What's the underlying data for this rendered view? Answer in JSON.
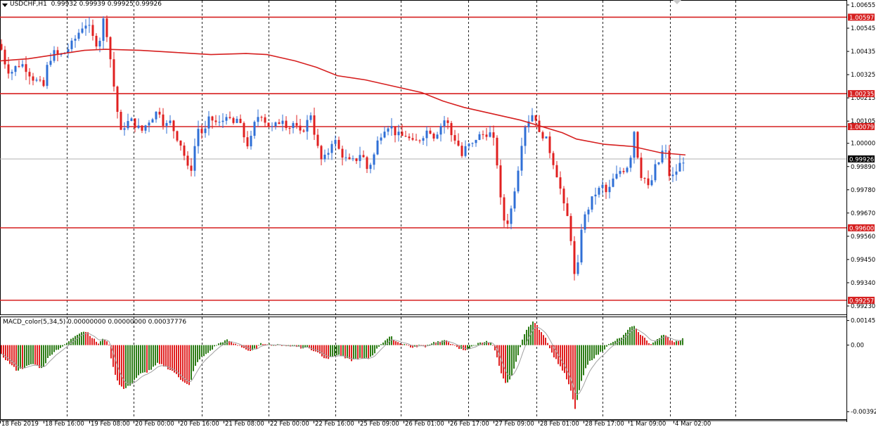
{
  "window": {
    "symbol_title": "USDCHF,H1",
    "ohlc_text": "0.99932 0.99939 0.99925 0.99926",
    "macd_title": "MACD_color(5,34,5)",
    "macd_values_text": "0.00000000 0.00000000 0.00037776"
  },
  "colors": {
    "bull": "#2f6fd6",
    "bear": "#e02020",
    "level_line": "#d62020",
    "ma_line": "#d62020",
    "hist_up": "#2e7d18",
    "hist_down": "#e02020",
    "signal_line": "#a0a0a0",
    "grid": "#000000",
    "price_badge_bg": "#000000"
  },
  "chart_data": [
    {
      "type": "candlestick",
      "symbol": "USDCHF",
      "timeframe": "H1",
      "y_ticks": [
        "1.00655",
        "1.00545",
        "1.00435",
        "1.00325",
        "1.00215",
        "1.00105",
        "1.00000",
        "0.99890",
        "0.99780",
        "0.99670",
        "0.99560",
        "0.99450",
        "0.99340",
        "0.99230"
      ],
      "ylim": [
        0.9922,
        1.00665
      ],
      "x_tick_labels": [
        "18 Feb 2019",
        "18 Feb 16:00",
        "19 Feb 08:00",
        "20 Feb 00:00",
        "20 Feb 16:00",
        "21 Feb 08:00",
        "22 Feb 00:00",
        "22 Feb 16:00",
        "25 Feb 09:00",
        "26 Feb 01:00",
        "26 Feb 17:00",
        "27 Feb 09:00",
        "28 Feb 01:00",
        "28 Feb 17:00",
        "1 Mar 09:00",
        "4 Mar 02:00"
      ],
      "horizontal_levels": [
        {
          "label": "1.00597",
          "value": 1.00597
        },
        {
          "label": "1.00235",
          "value": 1.00235
        },
        {
          "label": "1.00079",
          "value": 1.00079
        },
        {
          "label": "0.99600",
          "value": 0.996
        },
        {
          "label": "0.99257",
          "value": 0.99257
        }
      ],
      "current_price_label": "0.99926",
      "current_price": 0.99926,
      "close_path": [
        [
          0,
          1.0047
        ],
        [
          6,
          1.0039
        ],
        [
          14,
          1.0033
        ],
        [
          22,
          1.0036
        ],
        [
          30,
          1.0038
        ],
        [
          38,
          1.0035
        ],
        [
          46,
          1.0031
        ],
        [
          54,
          1.0029
        ],
        [
          62,
          1.0027
        ],
        [
          68,
          1.0038
        ],
        [
          76,
          1.0043
        ],
        [
          84,
          1.0041
        ],
        [
          92,
          1.0043
        ],
        [
          100,
          1.0046
        ],
        [
          108,
          1.005
        ],
        [
          116,
          1.0055
        ],
        [
          124,
          1.0057
        ],
        [
          132,
          1.005
        ],
        [
          140,
          1.0046
        ],
        [
          148,
          1.006
        ],
        [
          154,
          1.0048
        ],
        [
          160,
          1.0032
        ],
        [
          166,
          1.0017
        ],
        [
          172,
          1.0005
        ],
        [
          178,
          1.0009
        ],
        [
          186,
          1.0011
        ],
        [
          194,
          1.0008
        ],
        [
          202,
          1.0006
        ],
        [
          210,
          1.001
        ],
        [
          218,
          1.0013
        ],
        [
          226,
          1.0016
        ],
        [
          234,
          1.0008
        ],
        [
          242,
          1.001
        ],
        [
          250,
          1.0004
        ],
        [
          258,
          0.9999
        ],
        [
          264,
          0.9992
        ],
        [
          270,
          0.9984
        ],
        [
          276,
          0.9997
        ],
        [
          282,
          1.0007
        ],
        [
          290,
          1.0004
        ],
        [
          298,
          1.0012
        ],
        [
          306,
          1.001
        ],
        [
          314,
          1.0009
        ],
        [
          322,
          1.0014
        ],
        [
          330,
          1.0008
        ],
        [
          338,
          1.0012
        ],
        [
          346,
          1.0004
        ],
        [
          354,
          0.9998
        ],
        [
          362,
          1.0009
        ],
        [
          370,
          1.0015
        ],
        [
          378,
          1.001
        ],
        [
          386,
          1.0007
        ],
        [
          394,
          1.0009
        ],
        [
          402,
          1.0012
        ],
        [
          410,
          1.0007
        ],
        [
          418,
          1.001
        ],
        [
          426,
          1.0004
        ],
        [
          434,
          1.0008
        ],
        [
          442,
          1.0014
        ],
        [
          450,
          1.0
        ],
        [
          458,
          0.9991
        ],
        [
          466,
          0.9995
        ],
        [
          474,
          1.0003
        ],
        [
          482,
          0.9997
        ],
        [
          490,
          0.9993
        ],
        [
          498,
          0.9991
        ],
        [
          506,
          0.9992
        ],
        [
          514,
          0.9996
        ],
        [
          522,
          0.9988
        ],
        [
          530,
          0.9992
        ],
        [
          538,
          1.0002
        ],
        [
          546,
          1.0007
        ],
        [
          554,
          1.0009
        ],
        [
          562,
          1.0005
        ],
        [
          570,
          1.0003
        ],
        [
          578,
          1.0004
        ],
        [
          586,
          1.0
        ],
        [
          594,
          1.0001
        ],
        [
          602,
          1.0004
        ],
        [
          610,
          1.0007
        ],
        [
          618,
          1.0003
        ],
        [
          626,
          1.0008
        ],
        [
          634,
          1.0012
        ],
        [
          642,
          1.0004
        ],
        [
          650,
          1.0001
        ],
        [
          658,
          0.9993
        ],
        [
          664,
          1.0
        ],
        [
          670,
          0.9998
        ],
        [
          678,
          1.0003
        ],
        [
          686,
          1.0004
        ],
        [
          694,
          1.0005
        ],
        [
          700,
          1.0004
        ],
        [
          706,
          0.9995
        ],
        [
          710,
          0.9977
        ],
        [
          714,
          0.9969
        ],
        [
          718,
          0.9962
        ],
        [
          722,
          0.9963
        ],
        [
          728,
          0.997
        ],
        [
          734,
          0.9983
        ],
        [
          740,
          0.9994
        ],
        [
          744,
          1.0007
        ],
        [
          750,
          1.001
        ],
        [
          756,
          1.0014
        ],
        [
          762,
          1.0012
        ],
        [
          766,
          1.0004
        ],
        [
          772,
          1.0004
        ],
        [
          778,
          1.0001
        ],
        [
          784,
          0.9994
        ],
        [
          790,
          0.9988
        ],
        [
          796,
          0.998
        ],
        [
          802,
          0.997
        ],
        [
          808,
          0.9964
        ],
        [
          812,
          0.9955
        ],
        [
          816,
          0.994
        ],
        [
          820,
          0.9929
        ],
        [
          824,
          0.9955
        ],
        [
          828,
          0.9962
        ],
        [
          834,
          0.9967
        ],
        [
          840,
          0.9972
        ],
        [
          846,
          0.9976
        ],
        [
          852,
          0.9978
        ],
        [
          858,
          0.998
        ],
        [
          864,
          0.9975
        ],
        [
          870,
          0.9982
        ],
        [
          876,
          0.9984
        ],
        [
          882,
          0.9987
        ],
        [
          890,
          0.9988
        ],
        [
          896,
          0.9992
        ],
        [
          902,
          1.0006
        ],
        [
          908,
          0.9992
        ],
        [
          912,
          0.9985
        ],
        [
          918,
          0.9983
        ],
        [
          924,
          0.9977
        ],
        [
          930,
          0.9988
        ],
        [
          936,
          0.999
        ],
        [
          942,
          0.9996
        ],
        [
          946,
          0.9998
        ],
        [
          950,
          0.9988
        ],
        [
          954,
          0.9982
        ],
        [
          958,
          0.9985
        ],
        [
          964,
          0.9988
        ],
        [
          970,
          0.9992
        ],
        [
          975,
          0.99926
        ]
      ],
      "moving_average": [
        [
          0,
          1.0039
        ],
        [
          40,
          1.004
        ],
        [
          80,
          1.0042
        ],
        [
          120,
          1.0044
        ],
        [
          150,
          1.00445
        ],
        [
          200,
          1.0044
        ],
        [
          250,
          1.0043
        ],
        [
          300,
          1.0042
        ],
        [
          350,
          1.00425
        ],
        [
          380,
          1.0042
        ],
        [
          420,
          1.0039
        ],
        [
          450,
          1.0036
        ],
        [
          480,
          1.0032
        ],
        [
          520,
          1.003
        ],
        [
          560,
          1.0027
        ],
        [
          600,
          1.0024
        ],
        [
          630,
          1.002
        ],
        [
          660,
          1.0017
        ],
        [
          700,
          1.0014
        ],
        [
          740,
          1.0011
        ],
        [
          770,
          1.0008
        ],
        [
          800,
          1.0005
        ],
        [
          820,
          1.0002
        ],
        [
          860,
          0.99995
        ],
        [
          900,
          0.99985
        ],
        [
          940,
          0.99955
        ],
        [
          975,
          0.99945
        ]
      ]
    },
    {
      "type": "bar",
      "indicator": "MACD_color(5,34,5)",
      "y_ticks": [
        "0.00145",
        "0.00",
        "-0.00392"
      ],
      "ylim": [
        -0.0042,
        0.0016
      ],
      "histogram_profile": [
        [
          0,
          -0.0005
        ],
        [
          12,
          -0.001
        ],
        [
          24,
          -0.0015
        ],
        [
          36,
          -0.0013
        ],
        [
          48,
          -0.0011
        ],
        [
          60,
          -0.0014
        ],
        [
          68,
          -0.0008
        ],
        [
          76,
          -0.0004
        ],
        [
          84,
          -0.0002
        ],
        [
          92,
          0.0
        ],
        [
          100,
          0.0003
        ],
        [
          108,
          0.0006
        ],
        [
          116,
          0.0008
        ],
        [
          124,
          0.0008
        ],
        [
          132,
          0.0004
        ],
        [
          140,
          0.0001
        ],
        [
          148,
          0.0004
        ],
        [
          154,
          0.0002
        ],
        [
          160,
          -0.0012
        ],
        [
          168,
          -0.0022
        ],
        [
          176,
          -0.0026
        ],
        [
          184,
          -0.0024
        ],
        [
          192,
          -0.002
        ],
        [
          200,
          -0.0017
        ],
        [
          208,
          -0.0016
        ],
        [
          216,
          -0.0014
        ],
        [
          224,
          -0.0011
        ],
        [
          232,
          -0.0012
        ],
        [
          240,
          -0.0014
        ],
        [
          248,
          -0.0016
        ],
        [
          256,
          -0.002
        ],
        [
          264,
          -0.0022
        ],
        [
          270,
          -0.0024
        ],
        [
          276,
          -0.0014
        ],
        [
          284,
          -0.0008
        ],
        [
          292,
          -0.0006
        ],
        [
          300,
          -0.0003
        ],
        [
          308,
          0.0
        ],
        [
          316,
          0.0002
        ],
        [
          324,
          0.0003
        ],
        [
          332,
          0.0001
        ],
        [
          340,
          0.0
        ],
        [
          348,
          -0.0002
        ],
        [
          356,
          -0.0004
        ],
        [
          364,
          -0.0002
        ],
        [
          372,
          0.0001
        ],
        [
          380,
          0.0001
        ],
        [
          388,
          0.0
        ],
        [
          396,
          0.0
        ],
        [
          404,
          0.0
        ],
        [
          412,
          -0.0001
        ],
        [
          420,
          0.0
        ],
        [
          428,
          -0.0002
        ],
        [
          436,
          -0.0001
        ],
        [
          444,
          -0.0003
        ],
        [
          452,
          -0.0004
        ],
        [
          460,
          -0.0007
        ],
        [
          468,
          -0.0008
        ],
        [
          476,
          -0.0006
        ],
        [
          484,
          -0.0006
        ],
        [
          492,
          -0.0008
        ],
        [
          500,
          -0.0009
        ],
        [
          508,
          -0.0008
        ],
        [
          516,
          -0.0008
        ],
        [
          524,
          -0.0008
        ],
        [
          532,
          -0.0005
        ],
        [
          540,
          0.0
        ],
        [
          548,
          0.0003
        ],
        [
          556,
          0.0005
        ],
        [
          564,
          0.0002
        ],
        [
          572,
          0.0001
        ],
        [
          580,
          0.0
        ],
        [
          588,
          -0.0002
        ],
        [
          596,
          0.0
        ],
        [
          604,
          -0.0001
        ],
        [
          612,
          0.0001
        ],
        [
          620,
          0.0002
        ],
        [
          628,
          0.0002
        ],
        [
          636,
          0.0003
        ],
        [
          644,
          0.0
        ],
        [
          652,
          -0.0002
        ],
        [
          660,
          -0.0003
        ],
        [
          668,
          -0.0002
        ],
        [
          676,
          0.0
        ],
        [
          684,
          0.0002
        ],
        [
          692,
          0.0002
        ],
        [
          700,
          0.0001
        ],
        [
          706,
          -0.0006
        ],
        [
          712,
          -0.0016
        ],
        [
          718,
          -0.0022
        ],
        [
          724,
          -0.0022
        ],
        [
          730,
          -0.0015
        ],
        [
          736,
          -0.0008
        ],
        [
          742,
          0.0003
        ],
        [
          748,
          0.0008
        ],
        [
          754,
          0.0012
        ],
        [
          760,
          0.0014
        ],
        [
          766,
          0.001
        ],
        [
          772,
          0.0007
        ],
        [
          778,
          0.0003
        ],
        [
          784,
          -0.0004
        ],
        [
          790,
          -0.0008
        ],
        [
          796,
          -0.0012
        ],
        [
          802,
          -0.0016
        ],
        [
          808,
          -0.0022
        ],
        [
          814,
          -0.003
        ],
        [
          818,
          -0.0038
        ],
        [
          822,
          -0.003
        ],
        [
          828,
          -0.002
        ],
        [
          834,
          -0.0013
        ],
        [
          840,
          -0.0009
        ],
        [
          846,
          -0.0007
        ],
        [
          852,
          -0.0005
        ],
        [
          858,
          -0.0003
        ],
        [
          864,
          0.0
        ],
        [
          870,
          0.0001
        ],
        [
          876,
          0.0003
        ],
        [
          882,
          0.0004
        ],
        [
          888,
          0.0006
        ],
        [
          894,
          0.0009
        ],
        [
          900,
          0.0012
        ],
        [
          906,
          0.0009
        ],
        [
          912,
          0.0006
        ],
        [
          918,
          0.0004
        ],
        [
          924,
          0.0
        ],
        [
          930,
          0.0002
        ],
        [
          936,
          0.0004
        ],
        [
          942,
          0.0006
        ],
        [
          948,
          0.0005
        ],
        [
          954,
          0.0003
        ],
        [
          960,
          0.0002
        ],
        [
          966,
          0.0003
        ],
        [
          972,
          0.00038
        ]
      ]
    }
  ]
}
